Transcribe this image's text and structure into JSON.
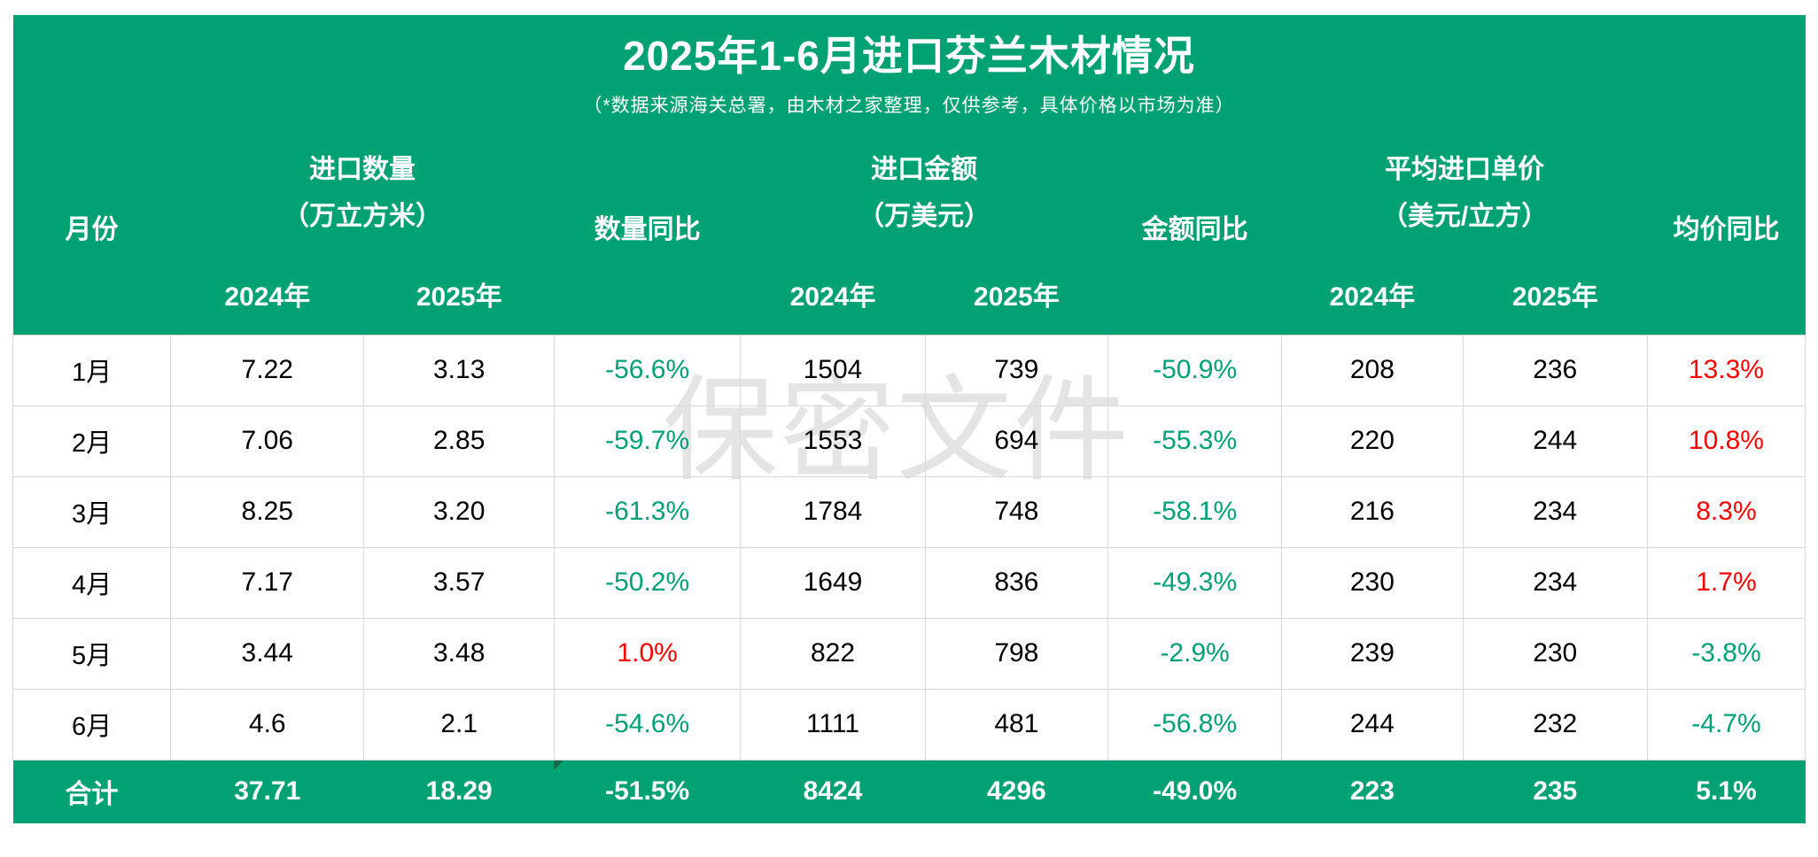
{
  "title": "2025年1-6月进口芬兰木材情况",
  "subtitle": "（*数据来源海关总署，由木材之家整理，仅供参考，具体价格以市场为准）",
  "watermark": "保密文件",
  "colors": {
    "header_green": "#00a273",
    "total_row_green": "#00a273",
    "negative_yoy_green": "#00a078",
    "positive_yoy_red": "#fe0000",
    "gridline_gray": "#d8d8d8",
    "watermark_gray": "#e4e4e4",
    "error_triangle_green": "#156b47"
  },
  "table": {
    "headers": {
      "month": "月份",
      "year_2024": "2024年",
      "year_2025": "2025年",
      "groups": [
        {
          "label": "进口数量",
          "unit": "（万立方米）",
          "yoy": "数量同比"
        },
        {
          "label": "进口金额",
          "unit": "（万美元）",
          "yoy": "金额同比"
        },
        {
          "label": "平均进口单价",
          "unit": "（美元/立方）",
          "yoy": "均价同比"
        }
      ]
    },
    "rows": [
      {
        "month": "1月",
        "cells": [
          {
            "v": "7.22"
          },
          {
            "v": "3.13"
          },
          {
            "v": "-56.6%",
            "c": "green"
          },
          {
            "v": "1504"
          },
          {
            "v": "739"
          },
          {
            "v": "-50.9%",
            "c": "green"
          },
          {
            "v": "208"
          },
          {
            "v": "236"
          },
          {
            "v": "13.3%",
            "c": "red"
          }
        ]
      },
      {
        "month": "2月",
        "cells": [
          {
            "v": "7.06"
          },
          {
            "v": "2.85"
          },
          {
            "v": "-59.7%",
            "c": "green"
          },
          {
            "v": "1553"
          },
          {
            "v": "694"
          },
          {
            "v": "-55.3%",
            "c": "green"
          },
          {
            "v": "220"
          },
          {
            "v": "244"
          },
          {
            "v": "10.8%",
            "c": "red"
          }
        ]
      },
      {
        "month": "3月",
        "cells": [
          {
            "v": "8.25"
          },
          {
            "v": "3.20"
          },
          {
            "v": "-61.3%",
            "c": "green"
          },
          {
            "v": "1784"
          },
          {
            "v": "748"
          },
          {
            "v": "-58.1%",
            "c": "green"
          },
          {
            "v": "216"
          },
          {
            "v": "234"
          },
          {
            "v": "8.3%",
            "c": "red"
          }
        ]
      },
      {
        "month": "4月",
        "cells": [
          {
            "v": "7.17"
          },
          {
            "v": "3.57"
          },
          {
            "v": "-50.2%",
            "c": "green"
          },
          {
            "v": "1649"
          },
          {
            "v": "836"
          },
          {
            "v": "-49.3%",
            "c": "green"
          },
          {
            "v": "230"
          },
          {
            "v": "234"
          },
          {
            "v": "1.7%",
            "c": "red"
          }
        ]
      },
      {
        "month": "5月",
        "cells": [
          {
            "v": "3.44"
          },
          {
            "v": "3.48"
          },
          {
            "v": "1.0%",
            "c": "red"
          },
          {
            "v": "822"
          },
          {
            "v": "798"
          },
          {
            "v": "-2.9%",
            "c": "green"
          },
          {
            "v": "239"
          },
          {
            "v": "230"
          },
          {
            "v": "-3.8%",
            "c": "green"
          }
        ]
      },
      {
        "month": "6月",
        "cells": [
          {
            "v": "4.6"
          },
          {
            "v": "2.1"
          },
          {
            "v": "-54.6%",
            "c": "green"
          },
          {
            "v": "1111"
          },
          {
            "v": "481"
          },
          {
            "v": "-56.8%",
            "c": "green"
          },
          {
            "v": "244"
          },
          {
            "v": "232"
          },
          {
            "v": "-4.7%",
            "c": "green"
          }
        ]
      }
    ],
    "total": {
      "label": "合计",
      "cells": [
        "37.71",
        "18.29",
        "-51.5%",
        "8424",
        "4296",
        "-49.0%",
        "223",
        "235",
        "5.1%"
      ]
    }
  }
}
